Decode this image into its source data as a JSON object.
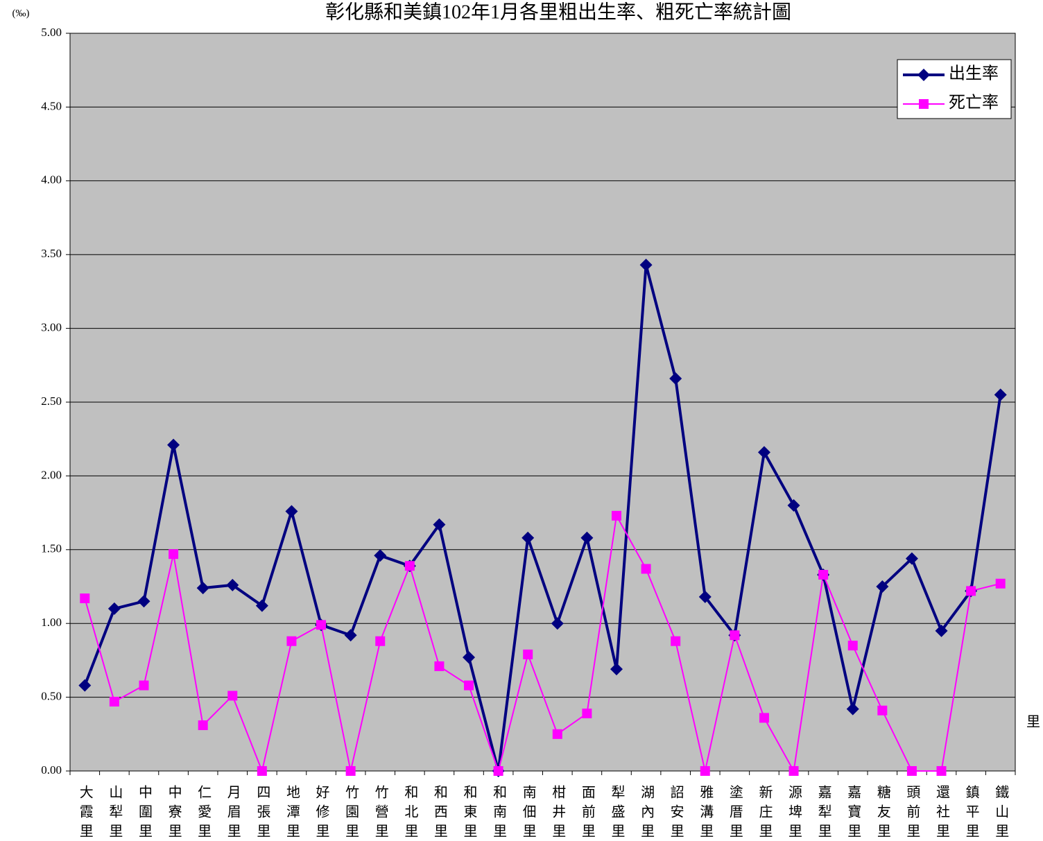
{
  "chart_data": {
    "type": "line",
    "title": "彰化縣和美鎮102年1月各里粗出生率、粗死亡率統計圖",
    "y_unit": "(‰)",
    "x_label": "里",
    "categories": [
      "大霞里",
      "山犁里",
      "中圍里",
      "中寮里",
      "仁愛里",
      "月眉里",
      "四張里",
      "地潭里",
      "好修里",
      "竹園里",
      "竹營里",
      "和北里",
      "和西里",
      "和東里",
      "和南里",
      "南佃里",
      "柑井里",
      "面前里",
      "犁盛里",
      "湖內里",
      "詔安里",
      "雅溝里",
      "塗厝里",
      "新庄里",
      "源埤里",
      "嘉犁里",
      "嘉寶里",
      "糖友里",
      "頭前里",
      "還社里",
      "鎮平里",
      "鐵山里"
    ],
    "series": [
      {
        "name": "出生率",
        "color": "#000080",
        "marker": "diamond",
        "values": [
          0.58,
          1.1,
          1.15,
          2.21,
          1.24,
          1.26,
          1.12,
          1.76,
          0.99,
          0.92,
          1.46,
          1.39,
          1.67,
          0.77,
          0,
          1.58,
          1.0,
          1.58,
          0.69,
          3.43,
          2.66,
          1.18,
          0.92,
          2.16,
          1.8,
          1.33,
          0.42,
          1.25,
          1.44,
          0.95,
          1.22,
          2.55
        ]
      },
      {
        "name": "死亡率",
        "color": "#FF00FF",
        "marker": "square",
        "values": [
          1.17,
          0.47,
          0.58,
          1.47,
          0.31,
          0.51,
          0,
          0.88,
          0.99,
          0,
          0.88,
          1.39,
          0.71,
          0.58,
          0,
          0.79,
          0.25,
          0.39,
          1.73,
          1.37,
          0.88,
          0,
          0.92,
          0.36,
          0,
          1.33,
          0.85,
          0.41,
          0,
          0,
          1.22,
          1.27
        ]
      }
    ],
    "ylim": [
      0,
      5
    ],
    "yticks": [
      {
        "value": 0,
        "label": "0.00"
      },
      {
        "value": 0.5,
        "label": "0.50"
      },
      {
        "value": 1,
        "label": "1.00"
      },
      {
        "value": 1.5,
        "label": "1.50"
      },
      {
        "value": 2,
        "label": "2.00"
      },
      {
        "value": 2.5,
        "label": "2.50"
      },
      {
        "value": 3,
        "label": "3.00"
      },
      {
        "value": 3.5,
        "label": "3.50"
      },
      {
        "value": 4,
        "label": "4.00"
      },
      {
        "value": 4.5,
        "label": "4.50"
      },
      {
        "value": 5,
        "label": "5.00"
      }
    ],
    "grid": true,
    "legend": "top-right"
  }
}
